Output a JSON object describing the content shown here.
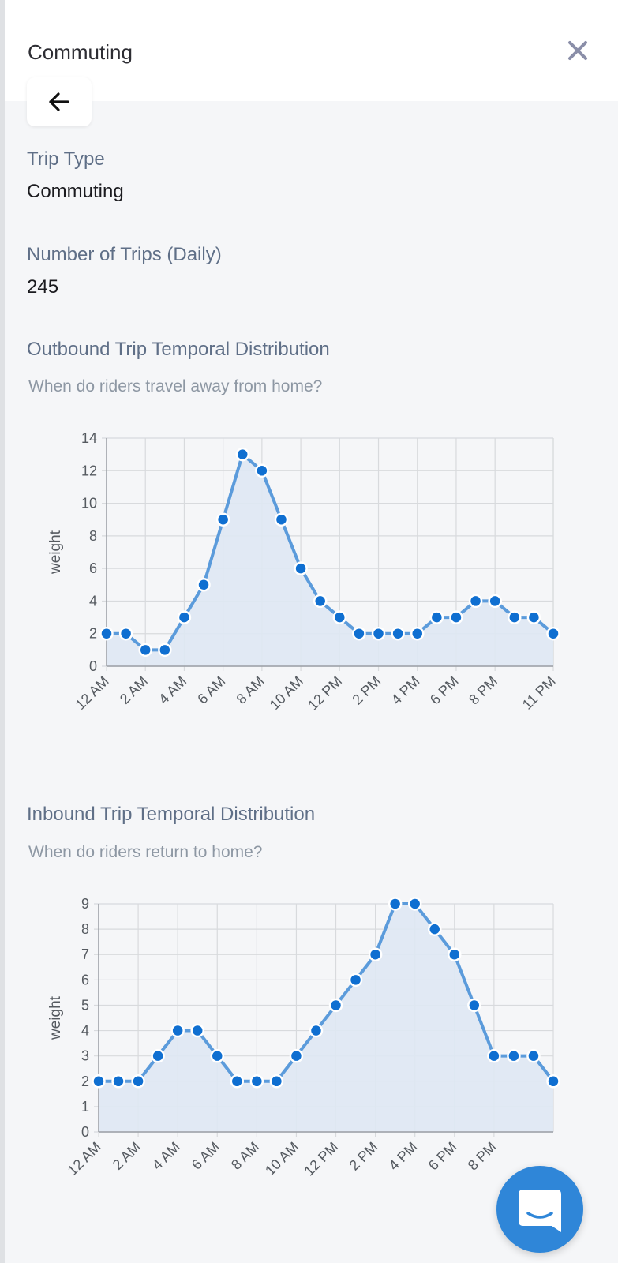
{
  "panel": {
    "title": "Commuting"
  },
  "fields": {
    "trip_type_label": "Trip Type",
    "trip_type_value": "Commuting",
    "num_trips_label": "Number of Trips (Daily)",
    "num_trips_value": "245"
  },
  "icons": {
    "close": "close-icon",
    "back": "arrow-left-icon",
    "chat": "chat-icon"
  },
  "colors": {
    "line": "#5b9bdb",
    "point": "#0f6fd1",
    "fill": "#dfe8f3",
    "grid": "#d8dadd",
    "launcher": "#2f86d8"
  },
  "charts": {
    "outbound": {
      "title": "Outbound Trip Temporal Distribution",
      "subtitle": "When do riders travel away from home?"
    },
    "inbound": {
      "title": "Inbound Trip Temporal Distribution",
      "subtitle": "When do riders return to home?"
    }
  },
  "chart_data": [
    {
      "type": "line",
      "title": "Outbound Trip Temporal Distribution",
      "subtitle": "When do riders travel away from home?",
      "xlabel": "",
      "ylabel": "weight",
      "x": [
        "12 AM",
        "1 AM",
        "2 AM",
        "3 AM",
        "4 AM",
        "5 AM",
        "6 AM",
        "7 AM",
        "8 AM",
        "9 AM",
        "10 AM",
        "11 AM",
        "12 PM",
        "1 PM",
        "2 PM",
        "3 PM",
        "4 PM",
        "5 PM",
        "6 PM",
        "7 PM",
        "8 PM",
        "9 PM",
        "10 PM",
        "11 PM"
      ],
      "x_tick_labels": [
        "12 AM",
        "2 AM",
        "4 AM",
        "6 AM",
        "8 AM",
        "10 AM",
        "12 PM",
        "2 PM",
        "4 PM",
        "6 PM",
        "8 PM",
        "11 PM"
      ],
      "values": [
        2,
        2,
        1,
        1,
        3,
        5,
        9,
        13,
        12,
        9,
        6,
        4,
        3,
        2,
        2,
        2,
        2,
        3,
        3,
        4,
        4,
        3,
        3,
        2
      ],
      "ylim": [
        0,
        14
      ],
      "yticks": [
        0,
        2,
        4,
        6,
        8,
        10,
        12,
        14
      ],
      "grid": true,
      "fill": true,
      "legend": "none"
    },
    {
      "type": "line",
      "title": "Inbound Trip Temporal Distribution",
      "subtitle": "When do riders return to home?",
      "xlabel": "",
      "ylabel": "weight",
      "x": [
        "12 AM",
        "1 AM",
        "2 AM",
        "3 AM",
        "4 AM",
        "5 AM",
        "6 AM",
        "7 AM",
        "8 AM",
        "9 AM",
        "10 AM",
        "11 AM",
        "12 PM",
        "1 PM",
        "2 PM",
        "3 PM",
        "4 PM",
        "5 PM",
        "6 PM",
        "7 PM",
        "8 PM",
        "9 PM",
        "10 PM",
        "11 PM"
      ],
      "x_tick_labels": [
        "12 AM",
        "2 AM",
        "4 AM",
        "6 AM",
        "8 AM",
        "10 AM",
        "12 PM",
        "2 PM",
        "4 PM",
        "6 PM",
        "8 PM"
      ],
      "values": [
        2,
        2,
        2,
        3,
        4,
        4,
        3,
        2,
        2,
        2,
        3,
        4,
        5,
        6,
        7,
        9,
        9,
        8,
        7,
        5,
        3,
        3,
        3,
        2
      ],
      "ylim": [
        0,
        9
      ],
      "yticks": [
        0,
        1,
        2,
        3,
        4,
        5,
        6,
        7,
        8,
        9
      ],
      "grid": true,
      "fill": true,
      "legend": "none"
    }
  ]
}
